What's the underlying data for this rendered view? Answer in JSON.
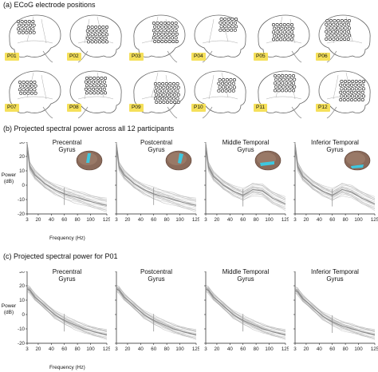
{
  "section_a": {
    "title": "(a) ECoG electrode positions",
    "participants": [
      "P01",
      "P02",
      "P03",
      "P04",
      "P05",
      "P06",
      "P07",
      "P08",
      "P09",
      "P10",
      "P11",
      "P12"
    ]
  },
  "section_b": {
    "title": "(b) Projected spectral power across all 12 participants",
    "y_axis_label_line1": "Power",
    "y_axis_label_line2": "(dB)",
    "x_axis_label": "Frequency (Hz)"
  },
  "section_c": {
    "title": "(c) Projected spectral power for P01",
    "y_axis_label_line1": "Power",
    "y_axis_label_line2": "(dB)",
    "x_axis_label": "Frequency (Hz)"
  },
  "colors": {
    "label_bg": "#f5e05a",
    "trace": "#9a9a9a",
    "region_highlight": "#3ec8e0"
  },
  "chart_data": [
    {
      "type": "line",
      "section": "b",
      "title_line1": "Precentral",
      "title_line2": "Gyrus",
      "x": [
        3,
        7,
        15,
        30,
        45,
        60,
        75,
        90,
        105,
        125
      ],
      "series": [
        {
          "values": [
            28,
            13,
            7,
            1,
            -3,
            -6,
            -8,
            -10,
            -12,
            -14
          ]
        }
      ],
      "xticks": [
        "3",
        "20",
        "40",
        "60",
        "80",
        "100",
        "125"
      ],
      "yticks": [
        "30",
        "20",
        "10",
        "0",
        "-10",
        "-20"
      ],
      "xlim": [
        3,
        125
      ],
      "ylim": [
        -20,
        30
      ]
    },
    {
      "type": "line",
      "section": "b",
      "title_line1": "Postcentral",
      "title_line2": "Gyrus",
      "x": [
        3,
        7,
        15,
        30,
        45,
        60,
        75,
        90,
        105,
        125
      ],
      "series": [
        {
          "values": [
            28,
            13,
            7,
            1,
            -3,
            -6,
            -8,
            -10,
            -12,
            -14
          ]
        }
      ],
      "xticks": [
        "3",
        "20",
        "40",
        "60",
        "80",
        "100",
        "125"
      ],
      "yticks": [
        "30",
        "20",
        "10",
        "0",
        "-10",
        "-20"
      ],
      "xlim": [
        3,
        125
      ],
      "ylim": [
        -20,
        30
      ]
    },
    {
      "type": "line",
      "section": "b",
      "title_line1": "Middle Temporal",
      "title_line2": "Gyrus",
      "x": [
        3,
        7,
        15,
        30,
        45,
        60,
        75,
        90,
        105,
        125
      ],
      "series": [
        {
          "values": [
            28,
            13,
            6,
            0,
            -4,
            -7,
            -3,
            -4,
            -9,
            -13
          ]
        }
      ],
      "xticks": [
        "3",
        "20",
        "40",
        "60",
        "80",
        "100",
        "125"
      ],
      "yticks": [
        "30",
        "20",
        "10",
        "0",
        "-10",
        "-20"
      ],
      "xlim": [
        3,
        125
      ],
      "ylim": [
        -20,
        30
      ]
    },
    {
      "type": "line",
      "section": "b",
      "title_line1": "Inferior Temporal",
      "title_line2": "Gyrus",
      "x": [
        3,
        7,
        15,
        30,
        45,
        60,
        75,
        90,
        105,
        125
      ],
      "series": [
        {
          "values": [
            28,
            13,
            6,
            0,
            -4,
            -7,
            -3,
            -5,
            -9,
            -13
          ]
        }
      ],
      "xticks": [
        "3",
        "20",
        "40",
        "60",
        "80",
        "100",
        "125"
      ],
      "yticks": [
        "30",
        "20",
        "10",
        "0",
        "-10",
        "-20"
      ],
      "xlim": [
        3,
        125
      ],
      "ylim": [
        -20,
        30
      ]
    },
    {
      "type": "line",
      "section": "c",
      "title_line1": "Precentral",
      "title_line2": "Gyrus",
      "x": [
        3,
        7,
        15,
        30,
        45,
        60,
        75,
        90,
        105,
        125
      ],
      "series": [
        {
          "values": [
            18,
            17,
            12,
            6,
            0,
            -4,
            -7,
            -10,
            -12,
            -14
          ]
        }
      ],
      "xticks": [
        "3",
        "20",
        "40",
        "60",
        "80",
        "100",
        "125"
      ],
      "yticks": [
        "30",
        "20",
        "10",
        "0",
        "-10",
        "-20"
      ],
      "xlim": [
        3,
        125
      ],
      "ylim": [
        -20,
        30
      ]
    },
    {
      "type": "line",
      "section": "c",
      "title_line1": "Postcentral",
      "title_line2": "Gyrus",
      "x": [
        3,
        7,
        15,
        30,
        45,
        60,
        75,
        90,
        105,
        125
      ],
      "series": [
        {
          "values": [
            18,
            17,
            12,
            6,
            0,
            -4,
            -7,
            -10,
            -12,
            -14
          ]
        }
      ],
      "xticks": [
        "3",
        "20",
        "40",
        "60",
        "80",
        "100",
        "125"
      ],
      "yticks": [
        "30",
        "20",
        "10",
        "0",
        "-10",
        "-20"
      ],
      "xlim": [
        3,
        125
      ],
      "ylim": [
        -20,
        30
      ]
    },
    {
      "type": "line",
      "section": "c",
      "title_line1": "Middle Temporal",
      "title_line2": "Gyrus",
      "x": [
        3,
        7,
        15,
        30,
        45,
        60,
        75,
        90,
        105,
        125
      ],
      "series": [
        {
          "values": [
            18,
            17,
            12,
            6,
            0,
            -4,
            -7,
            -10,
            -12,
            -14
          ]
        }
      ],
      "xticks": [
        "3",
        "20",
        "40",
        "60",
        "80",
        "100",
        "125"
      ],
      "yticks": [
        "30",
        "20",
        "10",
        "0",
        "-10",
        "-20"
      ],
      "xlim": [
        3,
        125
      ],
      "ylim": [
        -20,
        30
      ]
    },
    {
      "type": "line",
      "section": "c",
      "title_line1": "Inferior Temporal",
      "title_line2": "Gyrus",
      "x": [
        3,
        7,
        15,
        30,
        45,
        60,
        75,
        90,
        105,
        125
      ],
      "series": [
        {
          "values": [
            17,
            16,
            11,
            5,
            -1,
            -5,
            -8,
            -10,
            -12,
            -14
          ]
        }
      ],
      "xticks": [
        "3",
        "20",
        "40",
        "60",
        "80",
        "100",
        "125"
      ],
      "yticks": [
        "30",
        "20",
        "10",
        "0",
        "-10",
        "-20"
      ],
      "xlim": [
        3,
        125
      ],
      "ylim": [
        -20,
        30
      ]
    }
  ]
}
